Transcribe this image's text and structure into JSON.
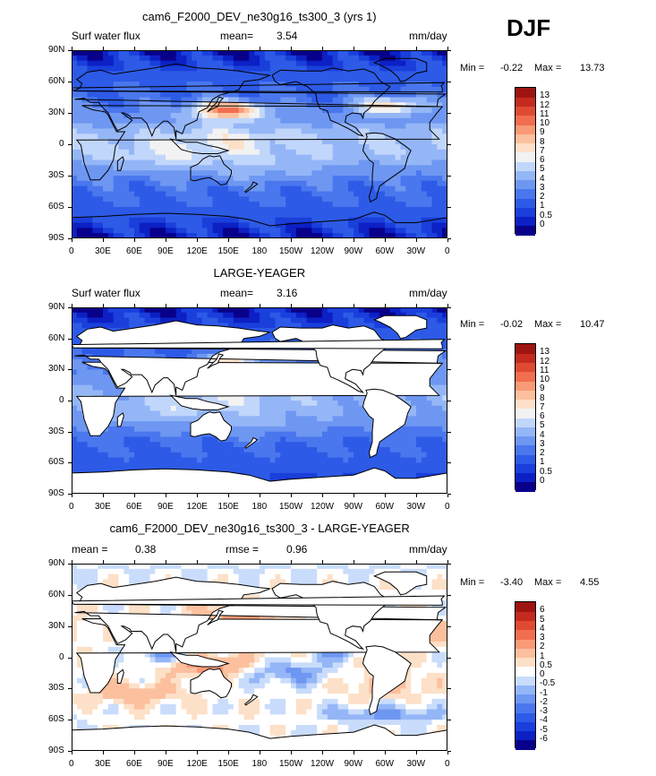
{
  "season": "DJF",
  "chart_data": [
    {
      "type": "heatmap",
      "title": "cam6_F2000_DEV_ne30g16_ts300_3 (yrs 1)",
      "variable": "Surf water flux",
      "stat_label": "mean=",
      "stat_value": "3.54",
      "units": "mm/day",
      "min_label": "Min =",
      "min_value": "-0.22",
      "max_label": "Max =",
      "max_value": "13.73",
      "colorbar_levels": [
        "0",
        "0.5",
        "1",
        "2",
        "3",
        "4",
        "5",
        "6",
        "7",
        "8",
        "9",
        "10",
        "11",
        "12",
        "13"
      ],
      "colorbar_colors": [
        "#08008a",
        "#0c20c4",
        "#1a3fdb",
        "#2d5ae6",
        "#4a77ee",
        "#6e97f2",
        "#94b6f7",
        "#c1d6fb",
        "#f2f2f2",
        "#fde0c8",
        "#fcc09e",
        "#f99a76",
        "#f16e4f",
        "#df4a33",
        "#c42a1f",
        "#9e1411"
      ],
      "land_masked": false
    },
    {
      "type": "heatmap",
      "title": "LARGE-YEAGER",
      "variable": "Surf water flux",
      "stat_label": "mean=",
      "stat_value": "3.16",
      "units": "mm/day",
      "min_label": "Min =",
      "min_value": "-0.02",
      "max_label": "Max =",
      "max_value": "10.47",
      "colorbar_levels": [
        "0",
        "0.5",
        "1",
        "2",
        "3",
        "4",
        "5",
        "6",
        "7",
        "8",
        "9",
        "10",
        "11",
        "12",
        "13"
      ],
      "colorbar_colors": [
        "#08008a",
        "#0c20c4",
        "#1a3fdb",
        "#2d5ae6",
        "#4a77ee",
        "#6e97f2",
        "#94b6f7",
        "#c1d6fb",
        "#f2f2f2",
        "#fde0c8",
        "#fcc09e",
        "#f99a76",
        "#f16e4f",
        "#df4a33",
        "#c42a1f",
        "#9e1411"
      ],
      "land_masked": true
    },
    {
      "type": "heatmap",
      "title": "cam6_F2000_DEV_ne30g16_ts300_3 - LARGE-YEAGER",
      "variable": "",
      "stat_label": "mean =",
      "stat_value": "0.38",
      "rmse_label": "rmse =",
      "rmse_value": "0.96",
      "units": "mm/day",
      "min_label": "Min =",
      "min_value": "-3.40",
      "max_label": "Max =",
      "max_value": "4.55",
      "colorbar_levels": [
        "-6",
        "-5",
        "-4",
        "-3",
        "-2",
        "-1",
        "-0.5",
        "0",
        "0.5",
        "1",
        "2",
        "3",
        "4",
        "5",
        "6"
      ],
      "colorbar_colors": [
        "#08008a",
        "#0c20c4",
        "#1a3fdb",
        "#2d5ae6",
        "#4a77ee",
        "#6e97f2",
        "#94b6f7",
        "#c9dcfb",
        "#ffffff",
        "#fde0c8",
        "#fcc09e",
        "#f99a76",
        "#f16e4f",
        "#df4a33",
        "#c42a1f",
        "#9e1411"
      ],
      "land_masked": true
    }
  ],
  "axes": {
    "lat_ticks": [
      "90N",
      "60N",
      "30N",
      "0",
      "30S",
      "60S",
      "90S"
    ],
    "lon_ticks": [
      "0",
      "30E",
      "60E",
      "90E",
      "120E",
      "150E",
      "180",
      "150W",
      "120W",
      "90W",
      "60W",
      "30W",
      "0"
    ]
  }
}
